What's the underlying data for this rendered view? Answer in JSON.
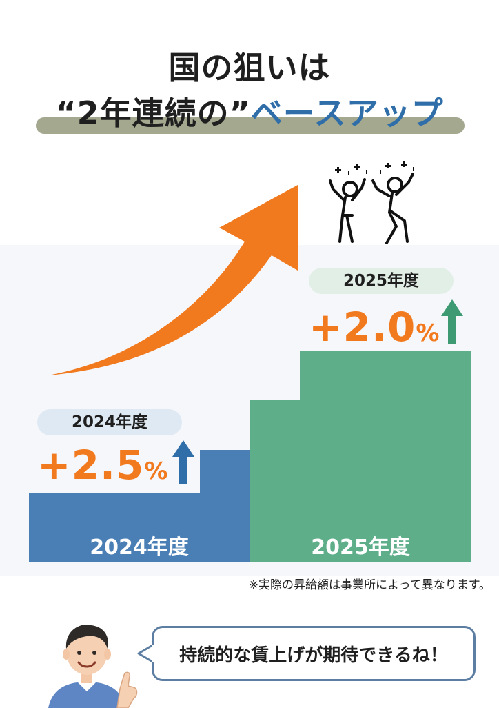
{
  "headline": {
    "line1": "国の狙いは",
    "line2_prefix": "“2年連続の”",
    "line2_accent": "ベースアップ"
  },
  "bars": [
    {
      "year_label": "2024年度",
      "pill_label": "2024年度",
      "rate_value": "+2.5",
      "rate_unit": "%",
      "color": "#4a7fb5"
    },
    {
      "year_label": "2025年度",
      "pill_label": "2025年度",
      "rate_value": "+2.0",
      "rate_unit": "%",
      "color": "#5fae8a"
    }
  ],
  "note": "※実際の昇給額は事業所によって異なります。",
  "speech_bubble": "持続的な賃上げが期待できるね！",
  "icons": {
    "trend": "orange-trend-arrow-icon",
    "up": "up-arrow-icon",
    "celebrate": "celebrating-people-icon",
    "person": "man-pointing-icon"
  },
  "colors": {
    "orange": "#f27a1e",
    "blue": "#4a7fb5",
    "green": "#5fae8a",
    "accent_text": "#2f6ea8"
  }
}
